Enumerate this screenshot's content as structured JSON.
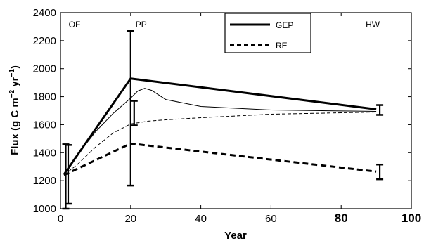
{
  "chart_data": {
    "type": "line",
    "xlabel": "Year",
    "ylabel": "Flux (g C m",
    "ylabel_sup1": "−2",
    "ylabel_mid": " yr",
    "ylabel_sup2": "−1",
    "ylabel_end": ")",
    "xlim": [
      0,
      100
    ],
    "ylim": [
      1000,
      2400
    ],
    "x_ticks": [
      0,
      20,
      40,
      60,
      80,
      100
    ],
    "y_ticks": [
      1000,
      1200,
      1400,
      1600,
      1800,
      2000,
      2200,
      2400
    ],
    "grid": false,
    "legend_position": "top-center",
    "annotations": [
      {
        "text": "OF",
        "x": 4
      },
      {
        "text": "PP",
        "x": 23
      },
      {
        "text": "HW",
        "x": 89
      }
    ],
    "series": [
      {
        "name": "GEP",
        "style": "solid-thick",
        "x": [
          1,
          20,
          90
        ],
        "y": [
          1245,
          1930,
          1710
        ]
      },
      {
        "name": "RE",
        "style": "dashed-thick",
        "x": [
          1,
          20,
          90
        ],
        "y": [
          1240,
          1465,
          1265
        ]
      }
    ],
    "modeled_series": [
      {
        "style": "solid-thin",
        "x": [
          1,
          5,
          10,
          15,
          20,
          22,
          24,
          26,
          30,
          40,
          60,
          80,
          90
        ],
        "y": [
          1245,
          1390,
          1550,
          1680,
          1790,
          1840,
          1860,
          1845,
          1780,
          1730,
          1705,
          1698,
          1695
        ]
      },
      {
        "style": "dashed-thin",
        "x": [
          1,
          5,
          10,
          15,
          20,
          25,
          30,
          40,
          60,
          80,
          90
        ],
        "y": [
          1240,
          1320,
          1440,
          1540,
          1605,
          1625,
          1635,
          1650,
          1675,
          1685,
          1690
        ]
      }
    ],
    "error_bars": [
      {
        "x": 1.5,
        "low": 1000,
        "high": 1460
      },
      {
        "x": 2.2,
        "low": 1035,
        "high": 1455
      },
      {
        "x": 20,
        "low": 1165,
        "high": 2270
      },
      {
        "x": 21,
        "low": 1595,
        "high": 1770
      },
      {
        "x": 91,
        "low": 1670,
        "high": 1740
      },
      {
        "x": 91,
        "low": 1210,
        "high": 1315
      }
    ]
  }
}
